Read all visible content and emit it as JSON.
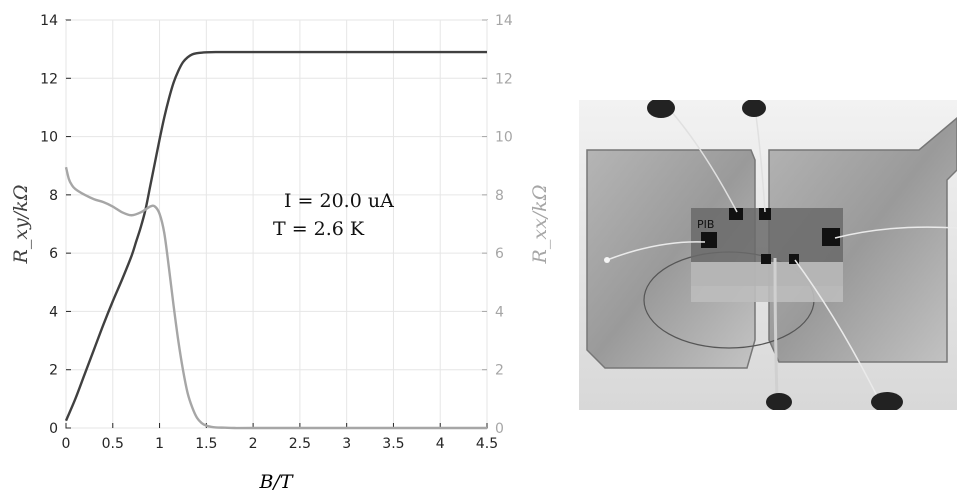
{
  "chart_data": {
    "type": "line",
    "title": "",
    "xlabel": "B/T",
    "ylabel_left": "R_xy/kΩ",
    "ylabel_right": "R_xx/kΩ",
    "xlim": [
      0,
      4.5
    ],
    "ylim_left": [
      0,
      14
    ],
    "ylim_right": [
      0,
      14
    ],
    "x_ticks": [
      "0",
      "0.5",
      "1",
      "1.5",
      "2",
      "2.5",
      "3",
      "3.5",
      "4",
      "4.5"
    ],
    "y_ticks_left": [
      "0",
      "2",
      "4",
      "6",
      "8",
      "10",
      "12",
      "14"
    ],
    "y_ticks_right": [
      "0",
      "2",
      "4",
      "6",
      "8",
      "10",
      "12",
      "14"
    ],
    "grid": true,
    "annotations": [
      "I = 20.0 uA",
      "T = 2.6 K"
    ],
    "series": [
      {
        "axis": "left",
        "color": "#404040",
        "x": [
          0,
          0.1,
          0.2,
          0.3,
          0.4,
          0.5,
          0.6,
          0.7,
          0.75,
          0.8,
          0.85,
          0.9,
          0.95,
          1.0,
          1.05,
          1.1,
          1.15,
          1.2,
          1.25,
          1.3,
          1.35,
          1.4,
          1.45,
          1.5,
          1.6,
          1.7,
          1.8,
          2.0,
          2.5,
          3.0,
          3.5,
          4.0,
          4.5
        ],
        "values": [
          0.25,
          1.0,
          1.85,
          2.7,
          3.55,
          4.35,
          5.1,
          5.9,
          6.4,
          6.9,
          7.5,
          8.3,
          9.1,
          9.9,
          10.65,
          11.3,
          11.85,
          12.25,
          12.55,
          12.72,
          12.82,
          12.86,
          12.88,
          12.89,
          12.9,
          12.9,
          12.9,
          12.9,
          12.9,
          12.9,
          12.9,
          12.9,
          12.9
        ]
      },
      {
        "axis": "right",
        "color": "#a6a6a6",
        "x": [
          0,
          0.03,
          0.06,
          0.1,
          0.2,
          0.3,
          0.4,
          0.5,
          0.6,
          0.7,
          0.8,
          0.9,
          0.95,
          1.0,
          1.05,
          1.1,
          1.15,
          1.2,
          1.25,
          1.3,
          1.35,
          1.4,
          1.45,
          1.5,
          1.55,
          1.6,
          1.7,
          1.8,
          2.0,
          2.5,
          3.0,
          3.5,
          4.0,
          4.5
        ],
        "values": [
          8.95,
          8.55,
          8.35,
          8.2,
          8.0,
          7.85,
          7.75,
          7.6,
          7.4,
          7.3,
          7.4,
          7.6,
          7.6,
          7.35,
          6.7,
          5.5,
          4.2,
          3.0,
          2.0,
          1.2,
          0.7,
          0.35,
          0.17,
          0.08,
          0.04,
          0.02,
          0.01,
          0.0,
          0.0,
          0.0,
          0.0,
          0.0,
          0.0,
          0.0
        ]
      }
    ]
  },
  "photo": {
    "label_text": "PIB",
    "description_icon": "device-photo"
  }
}
